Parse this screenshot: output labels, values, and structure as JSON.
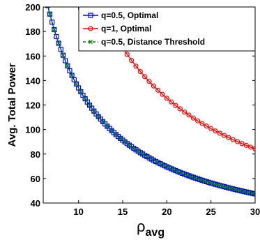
{
  "chart_data": {
    "type": "line",
    "xlabel_base": "ρ",
    "xlabel_sub": "avg",
    "ylabel": "Avg. Total Power",
    "xlim": [
      6,
      30
    ],
    "ylim": [
      40,
      200
    ],
    "xticks": [
      10,
      15,
      20,
      25,
      30
    ],
    "yticks": [
      40,
      60,
      80,
      100,
      120,
      140,
      160,
      180,
      200
    ],
    "grid": false,
    "legend_position": "top-right",
    "series": [
      {
        "name": "q=0.5, Optimal",
        "color": "#0000ff",
        "line_style": "solid",
        "marker": "square",
        "x_start": 6.25,
        "x_step": 0.25,
        "x_end": 30,
        "curve": {
          "type": "power",
          "a": 1180,
          "b": 0.003,
          "c": 0.945,
          "d": 0
        }
      },
      {
        "name": "q=1, Optimal",
        "color": "#ff0000",
        "line_style": "solid",
        "marker": "circle",
        "x_start": 12,
        "x_step": 0.5,
        "x_end": 30,
        "curve": {
          "type": "power",
          "a": 2400,
          "b": 0,
          "c": 0.985,
          "d": 0
        }
      },
      {
        "name": "q=0.5, Distance Threshold",
        "color": "#008000",
        "line_style": "dashed",
        "marker": "x",
        "x_start": 6.25,
        "x_step": 0.5,
        "x_end": 30,
        "curve": {
          "type": "power",
          "a": 1180,
          "b": 0.003,
          "c": 0.945,
          "d": 0
        }
      }
    ]
  }
}
